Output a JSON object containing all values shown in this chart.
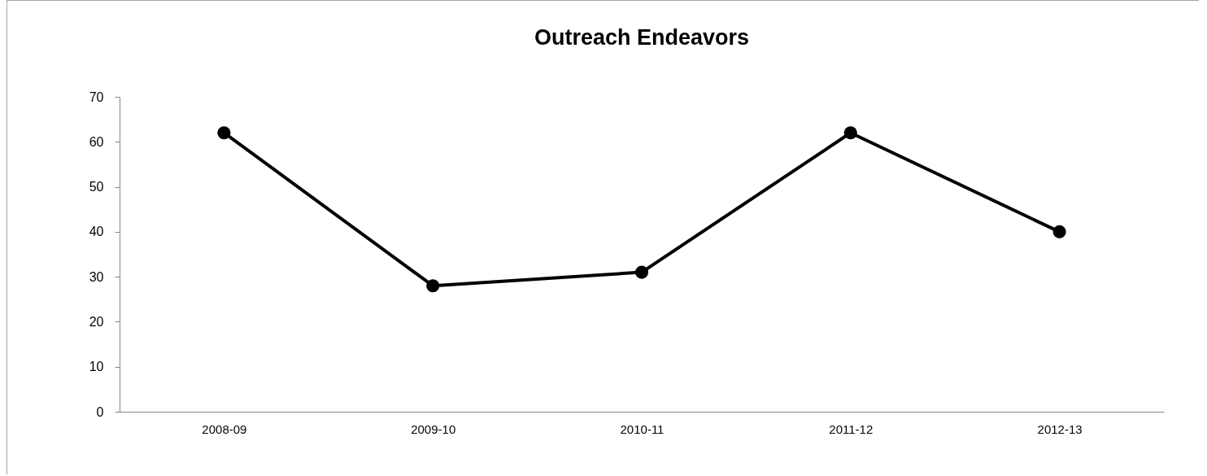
{
  "chart_data": {
    "type": "line",
    "title": "Outreach Endeavors",
    "categories": [
      "2008-09",
      "2009-10",
      "2010-11",
      "2011-12",
      "2012-13"
    ],
    "series": [
      {
        "color": "#000000",
        "values": [
          62,
          28,
          31,
          62,
          40
        ]
      }
    ],
    "ylim": [
      0,
      70
    ],
    "yticks": [
      0,
      10,
      20,
      30,
      40,
      50,
      60,
      70
    ],
    "grid": false,
    "legend": false,
    "marker": "circle",
    "line_style": "solid"
  }
}
